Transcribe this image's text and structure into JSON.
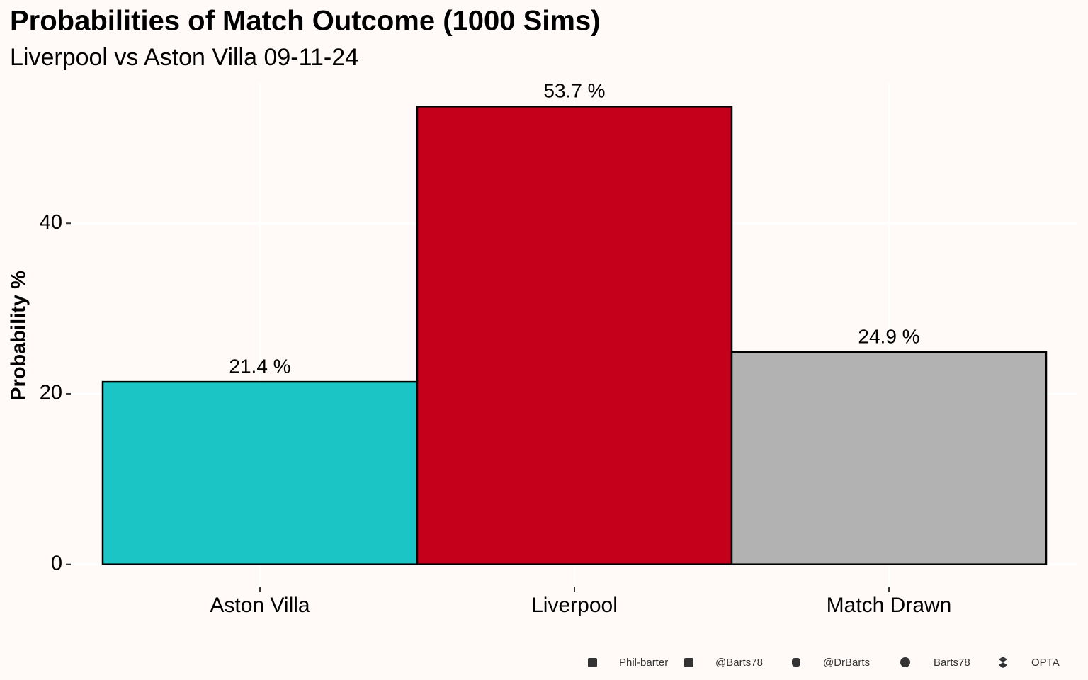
{
  "chart_data": {
    "type": "bar",
    "title": "Probabilities of Match Outcome (1000 Sims)",
    "subtitle": "Liverpool vs Aston Villa 09-11-24",
    "y_label": "Probability %",
    "categories": [
      "Aston Villa",
      "Liverpool",
      "Match Drawn"
    ],
    "values": [
      21.4,
      53.7,
      24.9
    ],
    "value_labels": [
      "21.4  %",
      "53.7  %",
      "24.9  %"
    ],
    "colors": [
      "#1cc5c5",
      "#c4001a",
      "#b2b2b2"
    ],
    "ylim": [
      -2.685,
      56.385
    ],
    "yticks": [
      0,
      20,
      40
    ],
    "grid": true,
    "caption": [
      "Phil-barter",
      "@Barts78",
      "@DrBarts",
      "Barts78",
      "OPTA"
    ]
  }
}
